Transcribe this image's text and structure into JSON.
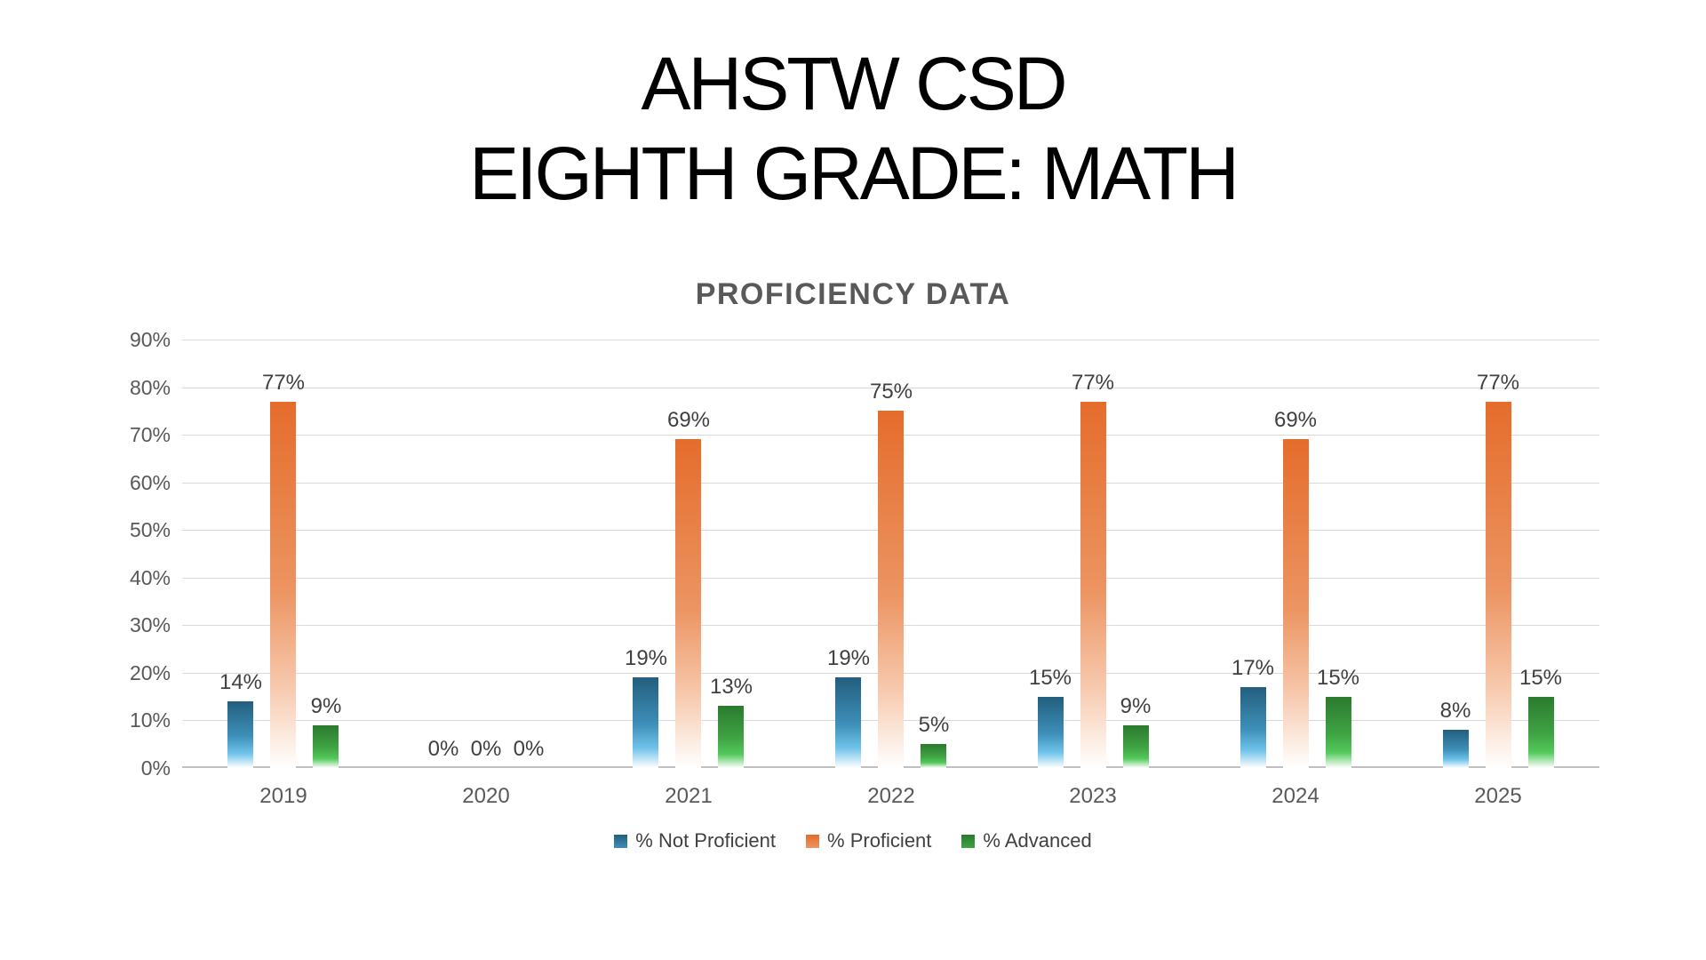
{
  "title": {
    "line1": "AHSTW CSD",
    "line2": "EIGHTH GRADE: MATH"
  },
  "chart_data": {
    "type": "bar",
    "title": "PROFICIENCY DATA",
    "categories": [
      "2019",
      "2020",
      "2021",
      "2022",
      "2023",
      "2024",
      "2025"
    ],
    "series": [
      {
        "name": "% Not Proficient",
        "values": [
          14,
          0,
          19,
          19,
          15,
          17,
          8
        ],
        "color": "#235E7E",
        "gradient": [
          "#235E7E",
          "#3E8FB9",
          "#6FC3EA"
        ]
      },
      {
        "name": "% Proficient",
        "values": [
          77,
          0,
          69,
          75,
          77,
          69,
          77
        ],
        "color": "#E56C2B",
        "gradient": [
          "#E56C2B",
          "#EC9563",
          "#F7C9AD"
        ]
      },
      {
        "name": "% Advanced",
        "values": [
          9,
          0,
          13,
          5,
          9,
          15,
          15
        ],
        "color": "#2B7A2E",
        "gradient": [
          "#2B7A2E",
          "#3FA344",
          "#53C95B"
        ]
      }
    ],
    "ylim": [
      0,
      90
    ],
    "yticks": [
      0,
      10,
      20,
      30,
      40,
      50,
      60,
      70,
      80,
      90
    ],
    "ytick_labels": [
      "0%",
      "10%",
      "20%",
      "30%",
      "40%",
      "50%",
      "60%",
      "70%",
      "80%",
      "90%"
    ],
    "value_suffix": "%",
    "grid": true,
    "legend_position": "bottom",
    "colors": {
      "background": "#FFFFFF",
      "gridline": "#D9D9D9",
      "baseline": "#BFBFBF",
      "axis_text": "#595959",
      "data_label_text": "#404040",
      "title_text": "#000000",
      "subtitle_text": "#595959",
      "legend_text": "#404040"
    }
  }
}
